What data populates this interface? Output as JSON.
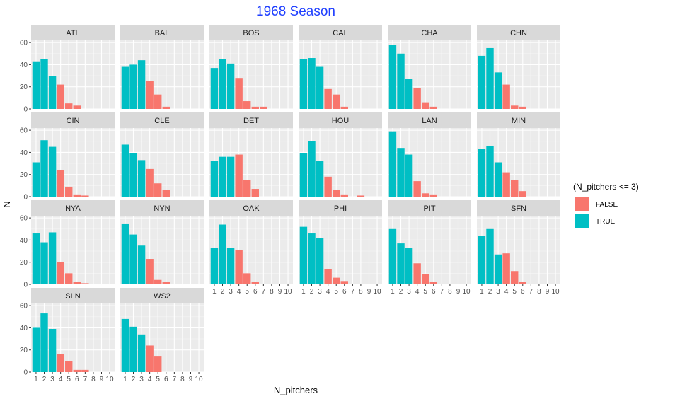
{
  "chart_data": {
    "type": "bar",
    "title": "1968 Season",
    "xlabel": "N_pitchers",
    "ylabel": "N",
    "x_ticks": [
      "1",
      "2",
      "3",
      "4",
      "5",
      "6",
      "7",
      "8",
      "9",
      "10"
    ],
    "y_ticks": [
      0,
      20,
      40,
      60
    ],
    "ylim": [
      0,
      62
    ],
    "grid": true,
    "legend": {
      "title": "(N_pitchers <= 3)",
      "position": "right",
      "entries": [
        {
          "label": "FALSE",
          "color": "#F8766D"
        },
        {
          "label": "TRUE",
          "color": "#00BFC4"
        }
      ]
    },
    "facets": [
      {
        "team": "ATL",
        "x": [
          1,
          2,
          3,
          4,
          5,
          6
        ],
        "values": [
          43,
          45,
          30,
          22,
          5,
          3
        ]
      },
      {
        "team": "BAL",
        "x": [
          1,
          2,
          3,
          4,
          5,
          6
        ],
        "values": [
          38,
          40,
          44,
          25,
          13,
          2
        ]
      },
      {
        "team": "BOS",
        "x": [
          1,
          2,
          3,
          4,
          5,
          6,
          7
        ],
        "values": [
          37,
          45,
          41,
          28,
          7,
          2,
          2
        ]
      },
      {
        "team": "CAL",
        "x": [
          1,
          2,
          3,
          4,
          5,
          6
        ],
        "values": [
          45,
          46,
          38,
          18,
          13,
          2
        ]
      },
      {
        "team": "CHA",
        "x": [
          1,
          2,
          3,
          4,
          5,
          6
        ],
        "values": [
          58,
          50,
          27,
          19,
          6,
          2
        ]
      },
      {
        "team": "CHN",
        "x": [
          1,
          2,
          3,
          4,
          5,
          6
        ],
        "values": [
          48,
          55,
          33,
          22,
          3,
          2
        ]
      },
      {
        "team": "CIN",
        "x": [
          1,
          2,
          3,
          4,
          5,
          6,
          7
        ],
        "values": [
          31,
          51,
          45,
          24,
          9,
          2,
          1
        ]
      },
      {
        "team": "CLE",
        "x": [
          1,
          2,
          3,
          4,
          5,
          6
        ],
        "values": [
          47,
          39,
          33,
          25,
          12,
          6
        ]
      },
      {
        "team": "DET",
        "x": [
          1,
          2,
          3,
          4,
          5,
          6
        ],
        "values": [
          32,
          36,
          36,
          38,
          15,
          7
        ]
      },
      {
        "team": "HOU",
        "x": [
          1,
          2,
          3,
          4,
          5,
          6,
          8
        ],
        "values": [
          39,
          50,
          32,
          18,
          6,
          2,
          1
        ]
      },
      {
        "team": "LAN",
        "x": [
          1,
          2,
          3,
          4,
          5,
          6
        ],
        "values": [
          59,
          44,
          38,
          14,
          3,
          2
        ]
      },
      {
        "team": "MIN",
        "x": [
          1,
          2,
          3,
          4,
          5,
          6
        ],
        "values": [
          43,
          46,
          31,
          22,
          15,
          5
        ]
      },
      {
        "team": "NYA",
        "x": [
          1,
          2,
          3,
          4,
          5,
          6,
          7
        ],
        "values": [
          46,
          38,
          47,
          20,
          10,
          2,
          1
        ]
      },
      {
        "team": "NYN",
        "x": [
          1,
          2,
          3,
          4,
          5,
          6
        ],
        "values": [
          55,
          45,
          35,
          23,
          4,
          2
        ]
      },
      {
        "team": "OAK",
        "x": [
          1,
          2,
          3,
          4,
          5,
          6
        ],
        "values": [
          33,
          54,
          33,
          31,
          10,
          2
        ]
      },
      {
        "team": "PHI",
        "x": [
          1,
          2,
          3,
          4,
          5,
          6
        ],
        "values": [
          52,
          46,
          42,
          14,
          6,
          3
        ]
      },
      {
        "team": "PIT",
        "x": [
          1,
          2,
          3,
          4,
          5,
          6
        ],
        "values": [
          50,
          37,
          33,
          19,
          9,
          2
        ]
      },
      {
        "team": "SFN",
        "x": [
          1,
          2,
          3,
          4,
          5,
          6
        ],
        "values": [
          44,
          50,
          27,
          28,
          12,
          2
        ]
      },
      {
        "team": "SLN",
        "x": [
          1,
          2,
          3,
          4,
          5,
          6,
          7
        ],
        "values": [
          40,
          53,
          39,
          16,
          10,
          2,
          2
        ]
      },
      {
        "team": "WS2",
        "x": [
          1,
          2,
          3,
          4,
          5
        ],
        "values": [
          48,
          41,
          34,
          24,
          14
        ]
      }
    ]
  }
}
